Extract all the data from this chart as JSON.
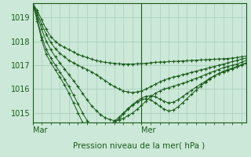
{
  "xlabel": "Pression niveau de la mer( hPa )",
  "bg_color": "#cce8d8",
  "grid_color": "#aacfbc",
  "line_color": "#1a5c1a",
  "ylim": [
    1014.6,
    1019.6
  ],
  "xlim": [
    0,
    47
  ],
  "yticks": [
    1015,
    1016,
    1017,
    1018,
    1019
  ],
  "vline_x": 24,
  "mar_x": 0,
  "mer_x": 24,
  "series": [
    [
      1019.6,
      1019.3,
      1018.9,
      1018.5,
      1018.2,
      1018.0,
      1017.85,
      1017.75,
      1017.65,
      1017.55,
      1017.45,
      1017.38,
      1017.32,
      1017.25,
      1017.2,
      1017.15,
      1017.12,
      1017.1,
      1017.08,
      1017.06,
      1017.05,
      1017.05,
      1017.05,
      1017.06,
      1017.07,
      1017.08,
      1017.1,
      1017.12,
      1017.13,
      1017.14,
      1017.15,
      1017.16,
      1017.17,
      1017.18,
      1017.19,
      1017.2,
      1017.21,
      1017.22,
      1017.23,
      1017.24,
      1017.25,
      1017.26,
      1017.27,
      1017.28,
      1017.3,
      1017.32,
      1017.35,
      1017.38
    ],
    [
      1019.6,
      1019.2,
      1018.7,
      1018.3,
      1017.95,
      1017.7,
      1017.5,
      1017.35,
      1017.2,
      1017.1,
      1017.0,
      1016.9,
      1016.82,
      1016.72,
      1016.6,
      1016.48,
      1016.35,
      1016.22,
      1016.1,
      1016.0,
      1015.92,
      1015.88,
      1015.85,
      1015.88,
      1015.92,
      1016.0,
      1016.1,
      1016.2,
      1016.3,
      1016.38,
      1016.45,
      1016.5,
      1016.55,
      1016.6,
      1016.65,
      1016.7,
      1016.75,
      1016.8,
      1016.85,
      1016.9,
      1016.95,
      1017.0,
      1017.05,
      1017.1,
      1017.15,
      1017.2,
      1017.25,
      1017.3
    ],
    [
      1019.6,
      1019.1,
      1018.5,
      1018.0,
      1017.65,
      1017.35,
      1017.1,
      1016.85,
      1016.6,
      1016.35,
      1016.1,
      1015.82,
      1015.55,
      1015.3,
      1015.1,
      1014.92,
      1014.8,
      1014.72,
      1014.68,
      1014.7,
      1014.78,
      1014.88,
      1015.0,
      1015.15,
      1015.32,
      1015.5,
      1015.68,
      1015.82,
      1015.92,
      1016.0,
      1016.06,
      1016.12,
      1016.18,
      1016.24,
      1016.3,
      1016.38,
      1016.45,
      1016.52,
      1016.6,
      1016.68,
      1016.75,
      1016.82,
      1016.9,
      1016.95,
      1017.0,
      1017.05,
      1017.12,
      1017.2
    ],
    [
      1019.6,
      1018.95,
      1018.2,
      1017.65,
      1017.3,
      1017.0,
      1016.72,
      1016.42,
      1016.1,
      1015.75,
      1015.38,
      1015.0,
      1014.68,
      1014.45,
      1014.32,
      1014.28,
      1014.35,
      1014.5,
      1014.65,
      1014.82,
      1015.0,
      1015.18,
      1015.35,
      1015.5,
      1015.62,
      1015.7,
      1015.72,
      1015.68,
      1015.58,
      1015.48,
      1015.42,
      1015.45,
      1015.55,
      1015.68,
      1015.82,
      1015.95,
      1016.08,
      1016.2,
      1016.32,
      1016.45,
      1016.55,
      1016.65,
      1016.72,
      1016.78,
      1016.85,
      1016.92,
      1017.0,
      1017.08
    ],
    [
      1019.6,
      1018.85,
      1018.05,
      1017.45,
      1017.1,
      1016.8,
      1016.5,
      1016.18,
      1015.82,
      1015.42,
      1015.0,
      1014.6,
      1014.28,
      1014.08,
      1014.0,
      1014.02,
      1014.15,
      1014.35,
      1014.55,
      1014.75,
      1014.95,
      1015.15,
      1015.32,
      1015.45,
      1015.55,
      1015.6,
      1015.55,
      1015.42,
      1015.28,
      1015.15,
      1015.08,
      1015.12,
      1015.25,
      1015.42,
      1015.6,
      1015.78,
      1015.95,
      1016.12,
      1016.28,
      1016.42,
      1016.55,
      1016.65,
      1016.75,
      1016.82,
      1016.88,
      1016.95,
      1017.02,
      1017.1
    ]
  ]
}
